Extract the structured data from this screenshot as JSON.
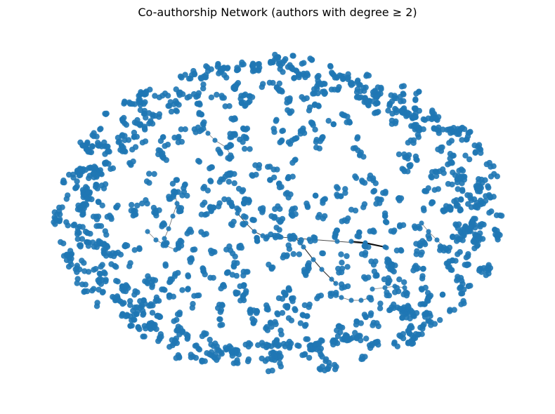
{
  "figure": {
    "title": "Co-authorship Network (authors with degree ≥ 2)"
  },
  "colors": {
    "node": "#1f77b4",
    "edge": "#000000",
    "background": "#ffffff"
  },
  "chart_data": {
    "type": "network",
    "title": "Co-authorship Network (authors with degree ≥ 2)",
    "layout": "spring (elliptical cloud of small clusters)",
    "axes": "hidden",
    "grid": false,
    "legend": "none",
    "node_color": "#1f77b4",
    "edge_color": "#000000",
    "visible_structure": "many small disconnected author clusters (pairs and small groups) arranged in an oval, with a few longer connected chains near the center"
  }
}
